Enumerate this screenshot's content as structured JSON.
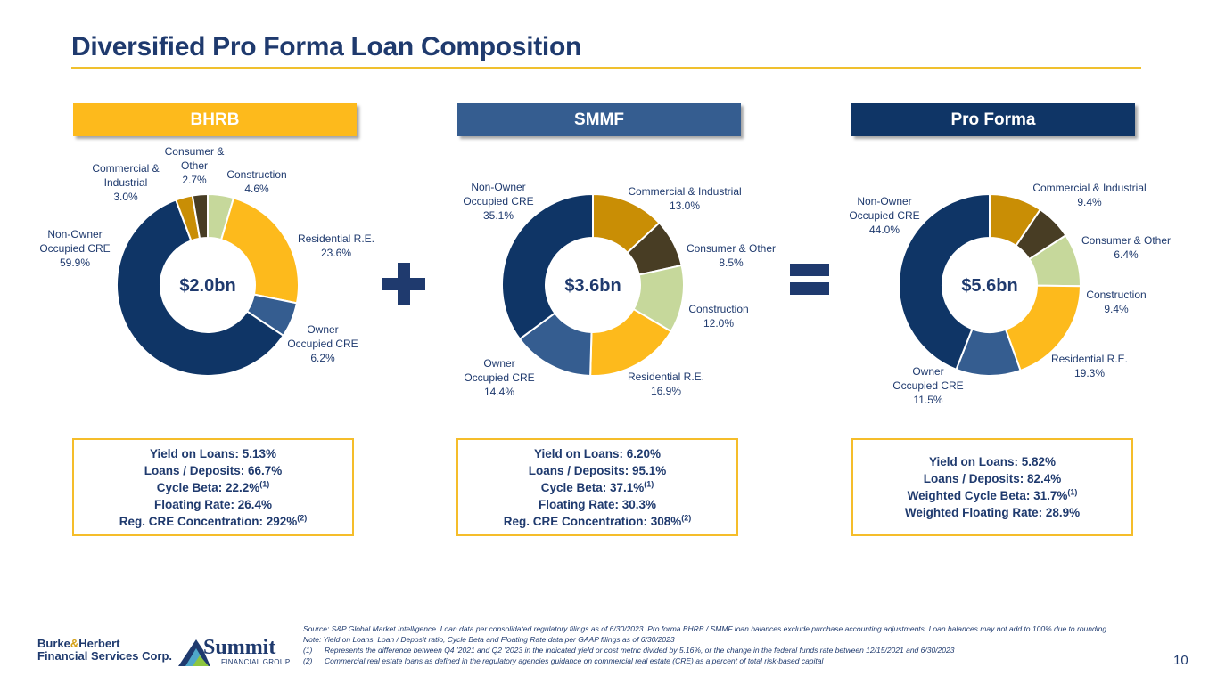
{
  "title": "Diversified Pro Forma Loan Composition",
  "colors": {
    "non_owner_cre": "#0f3566",
    "owner_cre": "#355d90",
    "residential": "#fdba1c",
    "construction": "#c6d89b",
    "consumer_other": "#483d24",
    "commercial_industrial": "#c98e05",
    "accent": "#f5bd2a"
  },
  "chart_data": [
    {
      "type": "pie",
      "title": "BHRB",
      "center_label": "$2.0bn",
      "slices": [
        {
          "label": "Construction",
          "value": 4.6,
          "display": "4.6%"
        },
        {
          "label": "Residential R.E.",
          "value": 23.6,
          "display": "23.6%"
        },
        {
          "label": "Owner Occupied CRE",
          "value": 6.2,
          "display": "6.2%"
        },
        {
          "label": "Non-Owner Occupied CRE",
          "value": 59.9,
          "display": "59.9%"
        },
        {
          "label": "Commercial & Industrial",
          "value": 3.0,
          "display": "3.0%"
        },
        {
          "label": "Consumer & Other",
          "value": 2.7,
          "display": "2.7%"
        }
      ]
    },
    {
      "type": "pie",
      "title": "SMMF",
      "center_label": "$3.6bn",
      "slices": [
        {
          "label": "Commercial & Industrial",
          "value": 13.0,
          "display": "13.0%"
        },
        {
          "label": "Consumer & Other",
          "value": 8.5,
          "display": "8.5%"
        },
        {
          "label": "Construction",
          "value": 12.0,
          "display": "12.0%"
        },
        {
          "label": "Residential R.E.",
          "value": 16.9,
          "display": "16.9%"
        },
        {
          "label": "Owner Occupied CRE",
          "value": 14.4,
          "display": "14.4%"
        },
        {
          "label": "Non-Owner Occupied CRE",
          "value": 35.1,
          "display": "35.1%"
        }
      ]
    },
    {
      "type": "pie",
      "title": "Pro Forma",
      "center_label": "$5.6bn",
      "slices": [
        {
          "label": "Commercial & Industrial",
          "value": 9.4,
          "display": "9.4%"
        },
        {
          "label": "Consumer & Other",
          "value": 6.4,
          "display": "6.4%"
        },
        {
          "label": "Construction",
          "value": 9.4,
          "display": "9.4%"
        },
        {
          "label": "Residential R.E.",
          "value": 19.3,
          "display": "19.3%"
        },
        {
          "label": "Owner Occupied CRE",
          "value": 11.5,
          "display": "11.5%"
        },
        {
          "label": "Non-Owner Occupied CRE",
          "value": 44.0,
          "display": "44.0%"
        }
      ]
    }
  ],
  "metrics": [
    {
      "lines": [
        {
          "text": "Yield on Loans: 5.13%",
          "sup": ""
        },
        {
          "text": "Loans / Deposits: 66.7%",
          "sup": ""
        },
        {
          "text": "Cycle Beta: 22.2%",
          "sup": "(1)"
        },
        {
          "text": "Floating Rate: 26.4%",
          "sup": ""
        },
        {
          "text": "Reg. CRE Concentration: 292%",
          "sup": "(2)"
        }
      ]
    },
    {
      "lines": [
        {
          "text": "Yield on Loans: 6.20%",
          "sup": ""
        },
        {
          "text": "Loans / Deposits: 95.1%",
          "sup": ""
        },
        {
          "text": "Cycle Beta: 37.1%",
          "sup": "(1)"
        },
        {
          "text": "Floating Rate: 30.3%",
          "sup": ""
        },
        {
          "text": "Reg. CRE Concentration: 308%",
          "sup": "(2)"
        }
      ]
    },
    {
      "lines": [
        {
          "text": "Yield on Loans: 5.82%",
          "sup": ""
        },
        {
          "text": "Loans / Deposits: 82.4%",
          "sup": ""
        },
        {
          "text": "Weighted Cycle Beta: 31.7%",
          "sup": "(1)"
        },
        {
          "text": "Weighted Floating Rate: 28.9%",
          "sup": ""
        }
      ]
    }
  ],
  "footnotes": {
    "source": "Source: S&P Global Market Intelligence. Loan data per consolidated regulatory filings as of 6/30/2023. Pro forma BHRB / SMMF loan balances exclude purchase accounting adjustments. Loan balances may not add to 100% due to rounding",
    "note": "Note: Yield on Loans, Loan / Deposit ratio, Cycle Beta and Floating Rate data per GAAP filings as of 6/30/2023",
    "items": [
      {
        "num": "(1)",
        "text": "Represents the difference between Q4 ’2021 and Q2 ’2023  in the indicated yield or cost metric divided by 5.16%, or the change in the federal funds rate between 12/15/2021 and 6/30/2023"
      },
      {
        "num": "(2)",
        "text": "Commercial real estate loans as defined in the regulatory agencies guidance on commercial real estate (CRE) as a percent of total risk-based capital"
      }
    ]
  },
  "page_number": "10",
  "logos": {
    "burke_line1": "Burke",
    "burke_amp": "&",
    "burke_line1b": "Herbert",
    "burke_line2": "Financial Services Corp.",
    "summit_word": "Summit",
    "summit_sub": "FINANCIAL GROUP"
  }
}
